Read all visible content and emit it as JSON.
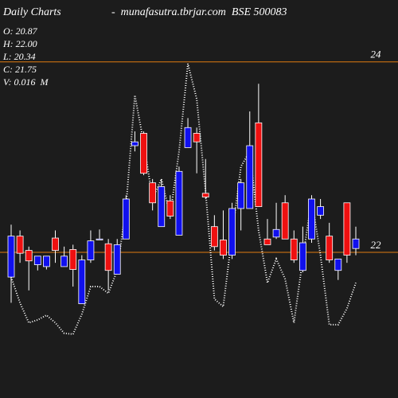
{
  "chart_data": {
    "type": "candlestick",
    "title": "Daily Charts",
    "subtitle": "-  munafasutra.tbrjar.com  BSE 500083",
    "info": [
      "O: 20.87",
      "H: 22.00",
      "L: 20.34",
      "C: 21.75",
      "V: 0.016  M"
    ],
    "ylim": [
      20.47,
      24.65
    ],
    "yticks": [
      22,
      24
    ],
    "gridline_color": "#e07a10",
    "up_color": "#1010ee",
    "down_color": "#ee1010",
    "open": [
      21.74,
      22.17,
      22.02,
      21.87,
      21.85,
      22.15,
      21.85,
      22.03,
      21.46,
      21.92,
      22.13,
      22.09,
      21.77,
      22.14,
      23.12,
      23.25,
      22.73,
      22.27,
      22.54,
      22.18,
      23.1,
      23.25,
      22.62,
      22.27,
      22.13,
      21.97,
      22.46,
      22.46,
      23.36,
      22.14,
      22.16,
      22.52,
      22.14,
      21.81,
      22.14,
      22.39,
      22.17,
      21.81,
      22.52,
      22.04
    ],
    "high": [
      22.29,
      22.23,
      22.06,
      21.96,
      21.96,
      22.23,
      22.06,
      22.08,
      21.97,
      22.23,
      22.24,
      22.14,
      22.14,
      22.6,
      23.27,
      23.27,
      22.77,
      22.77,
      22.6,
      22.9,
      23.41,
      23.31,
      22.98,
      22.39,
      22.44,
      22.52,
      22.77,
      23.48,
      23.77,
      22.35,
      22.52,
      22.6,
      22.23,
      22.27,
      22.6,
      22.56,
      22.31,
      21.93,
      22.52,
      22.27
    ],
    "low": [
      21.47,
      21.89,
      21.6,
      21.81,
      21.82,
      21.89,
      21.85,
      21.64,
      21.46,
      21.89,
      22.13,
      21.6,
      21.77,
      22.14,
      23.06,
      22.81,
      22.44,
      22.27,
      22.35,
      22.18,
      23.1,
      22.83,
      22.56,
      22.02,
      21.93,
      21.93,
      22.23,
      22.46,
      22.48,
      22.08,
      22.14,
      22.14,
      21.89,
      21.79,
      22.1,
      22.35,
      21.89,
      21.71,
      21.89,
      21.97
    ],
    "close": [
      22.17,
      21.99,
      21.91,
      21.96,
      21.96,
      22.02,
      21.96,
      21.82,
      21.92,
      22.12,
      22.14,
      21.81,
      22.08,
      22.56,
      23.16,
      22.83,
      22.52,
      22.69,
      22.38,
      22.85,
      23.31,
      23.16,
      22.58,
      22.06,
      21.97,
      22.46,
      22.73,
      23.12,
      22.48,
      22.08,
      22.24,
      22.14,
      21.92,
      22.1,
      22.56,
      22.48,
      21.92,
      21.93,
      21.97,
      22.14
    ],
    "overlay": {
      "color": "#ffffff",
      "values": [
        21.74,
        21.47,
        21.26,
        21.29,
        21.34,
        21.26,
        21.15,
        21.14,
        21.35,
        21.64,
        21.64,
        21.57,
        21.81,
        22.48,
        23.65,
        23.15,
        22.56,
        22.77,
        22.39,
        23.06,
        23.98,
        23.61,
        22.64,
        21.51,
        21.43,
        22.18,
        22.9,
        23.06,
        22.23,
        21.68,
        21.93,
        21.72,
        21.26,
        21.93,
        22.56,
        21.97,
        21.24,
        21.24,
        21.41,
        21.68
      ]
    }
  }
}
